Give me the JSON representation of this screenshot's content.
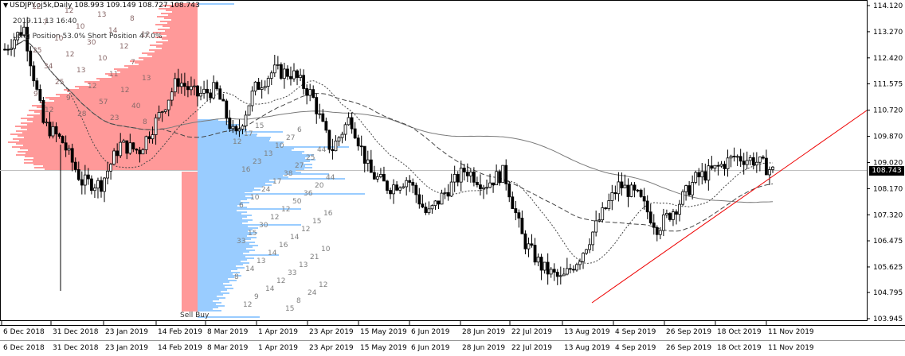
{
  "header": {
    "symbol_line": "USDJPY.oj5k,Daily  108.993 109.149 108.727 108.743",
    "timestamp": "2019.11.13 16:40",
    "position_text": "Long Position 53.0% Short Position 47.0%",
    "sell_buy": "Sell Buy"
  },
  "price_axis": {
    "labels": [
      "114.120",
      "113.270",
      "112.420",
      "111.575",
      "110.720",
      "109.870",
      "109.020",
      "108.170",
      "107.320",
      "106.475",
      "105.625",
      "104.795",
      "103.945"
    ],
    "current_price": "108.743"
  },
  "time_axis": {
    "labels": [
      "6 Dec 2018",
      "31 Dec 2018",
      "23 Jan 2019",
      "14 Feb 2019",
      "8 Mar 2019",
      "1 Apr 2019",
      "23 Apr 2019",
      "15 May 2019",
      "6 Jun 2019",
      "28 Jun 2019",
      "22 Jul 2019",
      "13 Aug 2019",
      "4 Sep 2019",
      "26 Sep 2019",
      "18 Oct 2019",
      "11 Nov 2019"
    ]
  },
  "profile_labels": [
    "12",
    "12",
    "13",
    "8",
    "7",
    "10",
    "14",
    "12",
    "10",
    "30",
    "12",
    "25",
    "12",
    "10",
    "7",
    "34",
    "13",
    "11",
    "13",
    "25",
    "12",
    "12",
    "9",
    "9",
    "57",
    "40",
    "12",
    "28",
    "23",
    "8",
    "15",
    "6",
    "17",
    "27",
    "12",
    "10",
    "44",
    "13",
    "25",
    "23",
    "27",
    "16",
    "38",
    "44",
    "17",
    "20",
    "24",
    "36",
    "10",
    "50",
    "6",
    "12",
    "16",
    "12",
    "15",
    "30",
    "12",
    "15",
    "14",
    "33",
    "16",
    "10",
    "14",
    "21",
    "13",
    "13",
    "14",
    "33",
    "8",
    "12",
    "12",
    "14",
    "24",
    "9",
    "8",
    "12",
    "15"
  ],
  "colors": {
    "sell_profile": "#ff9999",
    "buy_profile": "#99ccff",
    "trendline": "#ee0000",
    "candle": "#000000",
    "ma_solid": "#7a7a7a",
    "ma_dashed": "#444444"
  },
  "chart_data": {
    "type": "candlestick",
    "symbol": "USDJPY.oj5k",
    "timeframe": "Daily",
    "last_bar": {
      "open": 108.993,
      "high": 109.149,
      "low": 108.727,
      "close": 108.743
    },
    "y_range": [
      103.945,
      114.12
    ],
    "x_categories": [
      "6 Dec 2018",
      "31 Dec 2018",
      "23 Jan 2019",
      "14 Feb 2019",
      "8 Mar 2019",
      "1 Apr 2019",
      "23 Apr 2019",
      "15 May 2019",
      "6 Jun 2019",
      "28 Jun 2019",
      "22 Jul 2019",
      "13 Aug 2019",
      "4 Sep 2019",
      "26 Sep 2019",
      "18 Oct 2019",
      "11 Nov 2019"
    ],
    "close_path": [
      {
        "date": "6 Dec 2018",
        "close": 112.7
      },
      {
        "date": "15 Dec 2018",
        "close": 113.4
      },
      {
        "date": "24 Dec 2018",
        "close": 110.3
      },
      {
        "date": "31 Dec 2018",
        "close": 109.7
      },
      {
        "date": "3 Jan 2019",
        "close": 108.4
      },
      {
        "date": "10 Jan 2019",
        "close": 108.3
      },
      {
        "date": "23 Jan 2019",
        "close": 109.6
      },
      {
        "date": "1 Feb 2019",
        "close": 109.4
      },
      {
        "date": "14 Feb 2019",
        "close": 110.5
      },
      {
        "date": "5 Mar 2019",
        "close": 111.7
      },
      {
        "date": "8 Mar 2019",
        "close": 111.2
      },
      {
        "date": "18 Mar 2019",
        "close": 111.4
      },
      {
        "date": "25 Mar 2019",
        "close": 109.8
      },
      {
        "date": "1 Apr 2019",
        "close": 111.4
      },
      {
        "date": "15 Apr 2019",
        "close": 112.0
      },
      {
        "date": "23 Apr 2019",
        "close": 111.9
      },
      {
        "date": "3 May 2019",
        "close": 111.2
      },
      {
        "date": "15 May 2019",
        "close": 109.4
      },
      {
        "date": "22 May 2019",
        "close": 110.5
      },
      {
        "date": "31 May 2019",
        "close": 108.7
      },
      {
        "date": "6 Jun 2019",
        "close": 108.2
      },
      {
        "date": "18 Jun 2019",
        "close": 108.5
      },
      {
        "date": "25 Jun 2019",
        "close": 107.3
      },
      {
        "date": "28 Jun 2019",
        "close": 108.1
      },
      {
        "date": "10 Jul 2019",
        "close": 108.8
      },
      {
        "date": "22 Jul 2019",
        "close": 108.3
      },
      {
        "date": "1 Aug 2019",
        "close": 108.7
      },
      {
        "date": "5 Aug 2019",
        "close": 106.5
      },
      {
        "date": "13 Aug 2019",
        "close": 105.6
      },
      {
        "date": "26 Aug 2019",
        "close": 105.2
      },
      {
        "date": "4 Sep 2019",
        "close": 106.0
      },
      {
        "date": "10 Sep 2019",
        "close": 107.2
      },
      {
        "date": "19 Sep 2019",
        "close": 108.3
      },
      {
        "date": "26 Sep 2019",
        "close": 107.9
      },
      {
        "date": "3 Oct 2019",
        "close": 106.9
      },
      {
        "date": "10 Oct 2019",
        "close": 107.6
      },
      {
        "date": "18 Oct 2019",
        "close": 108.5
      },
      {
        "date": "28 Oct 2019",
        "close": 108.8
      },
      {
        "date": "4 Nov 2019",
        "close": 109.2
      },
      {
        "date": "11 Nov 2019",
        "close": 109.1
      },
      {
        "date": "13 Nov 2019",
        "close": 108.743
      }
    ],
    "indicators": [
      "moving average (solid)",
      "moving average (dashed)",
      "volume profile sell/buy histogram",
      "rising trendline"
    ],
    "grid": false
  }
}
